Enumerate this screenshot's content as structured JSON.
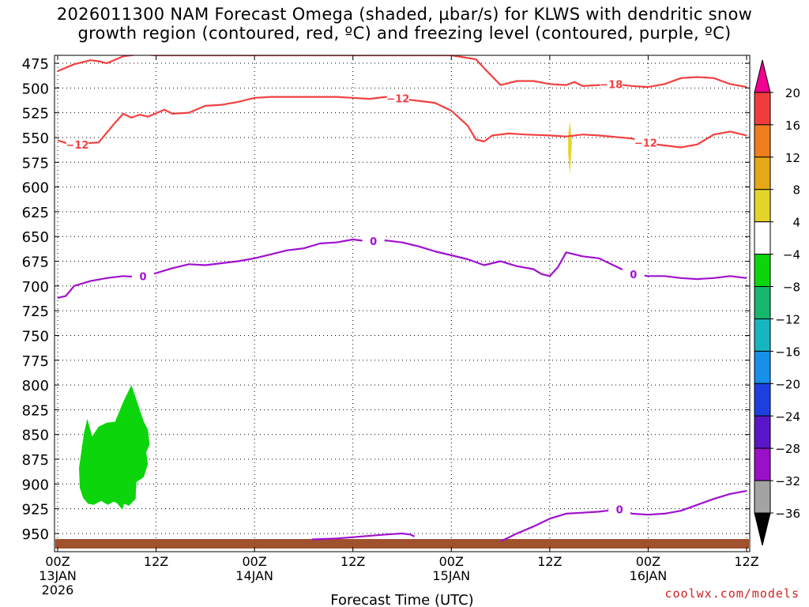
{
  "title_lines": [
    "2026011300 NAM Forecast Omega (shaded, µbar/s) for KLWS with dendritic snow",
    "growth region (contoured, red, ºC) and freezing level (contoured, purple, ºC)"
  ],
  "credit": "coolwx.com/models",
  "chart_data": {
    "type": "contour",
    "xlabel": "Forecast Time (UTC)",
    "x_range_hours": [
      0,
      84
    ],
    "x_ticks": [
      {
        "hour": 0,
        "lines": [
          "00Z",
          "13JAN",
          "2026"
        ]
      },
      {
        "hour": 12,
        "lines": [
          "12Z"
        ]
      },
      {
        "hour": 24,
        "lines": [
          "00Z",
          "14JAN"
        ]
      },
      {
        "hour": 36,
        "lines": [
          "12Z"
        ]
      },
      {
        "hour": 48,
        "lines": [
          "00Z",
          "15JAN"
        ]
      },
      {
        "hour": 60,
        "lines": [
          "12Z"
        ]
      },
      {
        "hour": 72,
        "lines": [
          "00Z",
          "16JAN"
        ]
      },
      {
        "hour": 84,
        "lines": [
          "12Z"
        ]
      }
    ],
    "y_ticks": [
      475,
      500,
      525,
      550,
      575,
      600,
      625,
      650,
      675,
      700,
      725,
      750,
      775,
      800,
      825,
      850,
      875,
      900,
      925,
      950
    ],
    "y_range_mb": [
      465,
      975
    ],
    "grid": "dotted",
    "colorbar": {
      "labels": [
        "20",
        "16",
        "12",
        "8",
        "4",
        "−4",
        "−8",
        "−12",
        "−16",
        "−20",
        "−24",
        "−28",
        "−32",
        "−36"
      ],
      "colors": [
        "#f20090",
        "#f23c3c",
        "#ef7d1d",
        "#e6a817",
        "#e4d42a",
        "#ffffff",
        "#0cd50c",
        "#16b66d",
        "#16b6c0",
        "#1690e8",
        "#1d3fe2",
        "#5a16c8",
        "#9a10c8",
        "#a3a3a3",
        "#000000"
      ]
    },
    "ground_color": "#a0522d",
    "series": [
      {
        "name": "-18",
        "color": "#f24040",
        "label_hour": 67.5,
        "points": [
          [
            0,
            483
          ],
          [
            2,
            476
          ],
          [
            4,
            472
          ],
          [
            5,
            473
          ],
          [
            6,
            475
          ],
          [
            8,
            468
          ],
          [
            10,
            466
          ],
          [
            12,
            467
          ],
          [
            30,
            467
          ],
          [
            48,
            467
          ],
          [
            51,
            471
          ],
          [
            52,
            480
          ],
          [
            54,
            497
          ],
          [
            56,
            493
          ],
          [
            58,
            493
          ],
          [
            60,
            496
          ],
          [
            62,
            497
          ],
          [
            63,
            494
          ],
          [
            64,
            498
          ],
          [
            66,
            497
          ],
          [
            68,
            496
          ],
          [
            70,
            498
          ],
          [
            72,
            499
          ],
          [
            74,
            496
          ],
          [
            76,
            490
          ],
          [
            78,
            489
          ],
          [
            80,
            490
          ],
          [
            82,
            496
          ],
          [
            84,
            499
          ]
        ]
      },
      {
        "name": "-12",
        "color": "#f24040",
        "label_hour": 2.4,
        "points": [
          [
            0,
            553
          ],
          [
            2,
            558
          ],
          [
            3,
            556
          ],
          [
            5,
            555
          ],
          [
            6,
            545
          ],
          [
            7,
            535
          ],
          [
            8,
            526
          ],
          [
            9,
            530
          ],
          [
            10,
            527
          ],
          [
            11,
            529
          ],
          [
            13,
            522
          ],
          [
            14,
            526
          ],
          [
            16,
            525
          ],
          [
            18,
            518
          ],
          [
            20,
            517
          ],
          [
            22,
            514
          ],
          [
            24,
            510
          ],
          [
            26,
            509
          ],
          [
            30,
            509
          ],
          [
            34,
            509
          ],
          [
            36,
            510
          ],
          [
            38,
            511
          ],
          [
            40,
            509
          ],
          [
            42,
            511
          ],
          [
            46,
            515
          ],
          [
            48,
            523
          ],
          [
            50,
            538
          ],
          [
            51,
            552
          ],
          [
            52,
            554
          ],
          [
            53,
            548
          ],
          [
            55,
            546
          ],
          [
            57,
            547
          ],
          [
            60,
            548
          ],
          [
            62,
            549
          ],
          [
            64,
            547
          ],
          [
            66,
            548
          ],
          [
            70,
            551
          ],
          [
            72,
            556
          ],
          [
            74,
            558
          ],
          [
            76,
            560
          ],
          [
            78,
            557
          ],
          [
            80,
            547
          ],
          [
            82,
            544
          ],
          [
            84,
            548
          ]
        ],
        "label_hour_b": 41.5,
        "label_hour_c": 71.7
      },
      {
        "name": "0",
        "color": "#a010d0",
        "label_hour": 10.4,
        "points": [
          [
            0,
            712
          ],
          [
            1,
            710
          ],
          [
            2,
            700
          ],
          [
            4,
            695
          ],
          [
            6,
            692
          ],
          [
            8,
            690
          ],
          [
            10,
            691
          ],
          [
            12,
            687
          ],
          [
            14,
            682
          ],
          [
            16,
            678
          ],
          [
            18,
            679
          ],
          [
            20,
            677
          ],
          [
            22,
            675
          ],
          [
            24,
            672
          ],
          [
            26,
            668
          ],
          [
            28,
            664
          ],
          [
            30,
            662
          ],
          [
            32,
            657
          ],
          [
            34,
            656
          ],
          [
            36,
            653
          ],
          [
            38,
            655
          ],
          [
            40,
            654
          ],
          [
            42,
            656
          ],
          [
            44,
            660
          ],
          [
            46,
            665
          ],
          [
            48,
            669
          ],
          [
            50,
            673
          ],
          [
            52,
            679
          ],
          [
            54,
            675
          ],
          [
            56,
            680
          ],
          [
            58,
            683
          ],
          [
            59,
            688
          ],
          [
            60,
            690
          ],
          [
            61,
            681
          ],
          [
            62,
            666
          ],
          [
            63,
            668
          ],
          [
            64,
            670
          ],
          [
            66,
            672
          ],
          [
            68,
            680
          ],
          [
            70,
            688
          ],
          [
            72,
            690
          ],
          [
            74,
            690
          ],
          [
            76,
            692
          ],
          [
            78,
            693
          ],
          [
            80,
            692
          ],
          [
            82,
            690
          ],
          [
            84,
            692
          ]
        ],
        "label_hour_b": 38.5,
        "label_hour_c": 70.2
      },
      {
        "name": "0",
        "color": "#a010d0",
        "label_hour": 68.5,
        "points": [
          [
            54,
            958
          ],
          [
            56,
            950
          ],
          [
            58,
            943
          ],
          [
            60,
            935
          ],
          [
            62,
            930
          ],
          [
            64,
            929
          ],
          [
            66,
            928
          ],
          [
            68,
            926
          ],
          [
            69,
            925
          ],
          [
            70,
            930
          ],
          [
            72,
            931
          ],
          [
            74,
            930
          ],
          [
            76,
            927
          ],
          [
            78,
            921
          ],
          [
            80,
            915
          ],
          [
            82,
            910
          ],
          [
            84,
            907
          ]
        ]
      },
      {
        "name": "0",
        "color": "#a010d0",
        "points": [
          [
            31,
            956
          ],
          [
            34,
            955
          ],
          [
            37,
            953
          ],
          [
            40,
            951
          ],
          [
            42,
            950
          ],
          [
            43,
            951
          ],
          [
            43.5,
            953
          ]
        ]
      }
    ],
    "shaded_regions": [
      {
        "value_range": [
          -8,
          -4
        ],
        "color": "#0cd50c",
        "points": [
          [
            2.6,
            884
          ],
          [
            3.2,
            849
          ],
          [
            3.6,
            834
          ],
          [
            4.2,
            852
          ],
          [
            5,
            842
          ],
          [
            6,
            838
          ],
          [
            7,
            837
          ],
          [
            8,
            817
          ],
          [
            9,
            800
          ],
          [
            9.6,
            815
          ],
          [
            10.5,
            837
          ],
          [
            11,
            845
          ],
          [
            11.2,
            860
          ],
          [
            10.8,
            868
          ],
          [
            11,
            880
          ],
          [
            10.5,
            893
          ],
          [
            9.6,
            898
          ],
          [
            9.5,
            915
          ],
          [
            8.7,
            922
          ],
          [
            8.1,
            920
          ],
          [
            7.9,
            926
          ],
          [
            7.2,
            919
          ],
          [
            6.8,
            918
          ],
          [
            6.1,
            921
          ],
          [
            5.3,
            917
          ],
          [
            4.4,
            921
          ],
          [
            3.7,
            920
          ],
          [
            3.1,
            914
          ],
          [
            2.7,
            904
          ]
        ]
      },
      {
        "value_range": [
          4,
          8
        ],
        "color": "#e4d42a",
        "points": [
          [
            62.45,
            533
          ],
          [
            62.7,
            555
          ],
          [
            62.55,
            577
          ],
          [
            62.45,
            587
          ],
          [
            62.25,
            566
          ],
          [
            62.25,
            548
          ]
        ]
      }
    ]
  }
}
